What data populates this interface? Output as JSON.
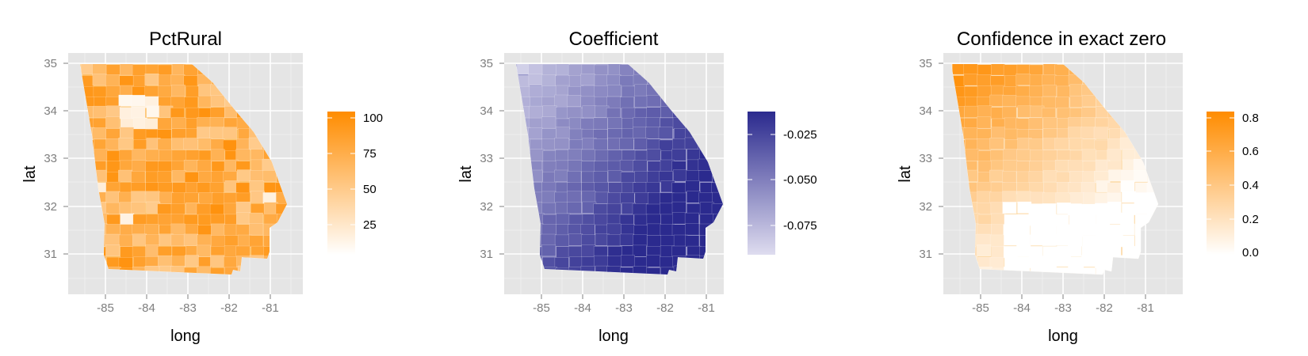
{
  "figure": {
    "panels": [
      {
        "id": "pctrural",
        "title": "PctRural",
        "xlabel": "long",
        "ylabel": "lat",
        "x_ticks": [
          "-85",
          "-84",
          "-83",
          "-82",
          "-81"
        ],
        "y_ticks": [
          "31",
          "32",
          "33",
          "34",
          "35"
        ],
        "legend": {
          "colors": [
            "#ffffff",
            "#ff8c00"
          ],
          "labels": [
            "100",
            "75",
            "50",
            "25"
          ]
        }
      },
      {
        "id": "coefficient",
        "title": "Coefficient",
        "xlabel": "long",
        "ylabel": "lat",
        "x_ticks": [
          "-85",
          "-84",
          "-83",
          "-82",
          "-81"
        ],
        "y_ticks": [
          "31",
          "32",
          "33",
          "34",
          "35"
        ],
        "legend": {
          "colors": [
            "#dedcef",
            "#2b2a8e"
          ],
          "labels": [
            "-0.025",
            "-0.050",
            "-0.075"
          ]
        }
      },
      {
        "id": "confidence",
        "title": "Confidence in exact zero",
        "xlabel": "long",
        "ylabel": "lat",
        "x_ticks": [
          "-85",
          "-84",
          "-83",
          "-82",
          "-81"
        ],
        "y_ticks": [
          "31",
          "32",
          "33",
          "34",
          "35"
        ],
        "legend": {
          "colors": [
            "#ffffff",
            "#ff8c00"
          ],
          "labels": [
            "0.8",
            "0.6",
            "0.4",
            "0.2",
            "0.0"
          ]
        }
      }
    ]
  }
}
